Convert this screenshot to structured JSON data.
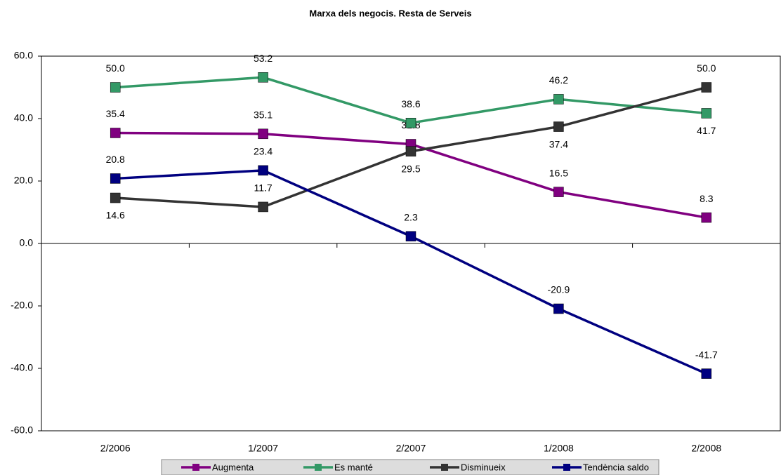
{
  "chart_data": {
    "type": "line",
    "title": "Marxa dels negocis. Resta de Serveis",
    "categories": [
      "2/2006",
      "1/2007",
      "2/2007",
      "1/2008",
      "2/2008"
    ],
    "series": [
      {
        "name": "Augmenta",
        "color": "#800080",
        "values": [
          35.4,
          35.1,
          31.8,
          16.5,
          8.3
        ],
        "value_labels": [
          "35.4",
          "35.1",
          "31.8",
          "16.5",
          "8.3"
        ]
      },
      {
        "name": "Es manté",
        "color": "#339966",
        "values": [
          50,
          53.2,
          38.6,
          46.2,
          41.7
        ],
        "value_labels": [
          "50.0",
          "53.2",
          "38.6",
          "46.2",
          "41.7"
        ]
      },
      {
        "name": "Disminueix",
        "color": "#333333",
        "values": [
          14.6,
          11.7,
          29.5,
          37.4,
          50
        ],
        "value_labels": [
          "14.6",
          "11.7",
          "29.5",
          "37.4",
          "50.0"
        ]
      },
      {
        "name": "Tendència saldo",
        "color": "#000080",
        "values": [
          20.8,
          23.4,
          2.3,
          -20.9,
          -41.7
        ],
        "value_labels": [
          "20.8",
          "23.4",
          "2.3",
          "-20.9",
          "-41.7"
        ]
      }
    ],
    "ylim": [
      -60,
      60
    ],
    "yticks": [
      {
        "value": -60,
        "label": "-60.0"
      },
      {
        "value": -40,
        "label": "-40.0"
      },
      {
        "value": -20,
        "label": "-20.0"
      },
      {
        "value": 0,
        "label": "0.0"
      },
      {
        "value": 20,
        "label": "20.0"
      },
      {
        "value": 40,
        "label": "40.0"
      },
      {
        "value": 60,
        "label": "60.0"
      }
    ],
    "grid": false
  }
}
